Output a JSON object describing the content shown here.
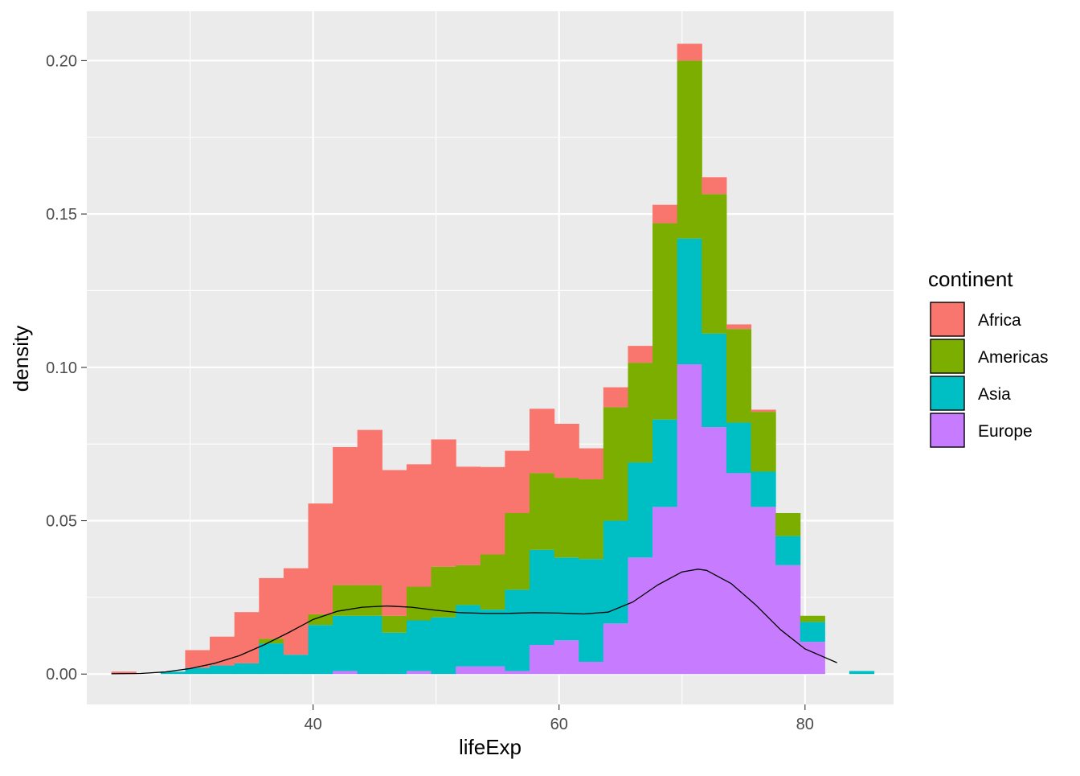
{
  "chart_data": {
    "type": "bar",
    "subtype": "stacked-histogram-with-density-line",
    "xlabel": "lifeExp",
    "ylabel": "density",
    "xlim": [
      21.6,
      87.2
    ],
    "ylim": [
      -0.0099,
      0.2161
    ],
    "x_ticks": [
      40,
      60,
      80
    ],
    "x_tick_labels": [
      "40",
      "60",
      "80"
    ],
    "y_ticks": [
      0.0,
      0.05,
      0.1,
      0.15,
      0.2
    ],
    "y_tick_labels": [
      "0.00",
      "0.05",
      "0.10",
      "0.15",
      "0.20"
    ],
    "grid": true,
    "legend_position": "right",
    "legend_title": "continent",
    "bin_width": 2.0,
    "bin_centers": [
      24.6,
      26.6,
      28.6,
      30.6,
      32.6,
      34.6,
      36.6,
      38.6,
      40.6,
      42.6,
      44.6,
      46.6,
      48.6,
      50.6,
      52.6,
      54.6,
      56.6,
      58.6,
      60.6,
      62.6,
      64.6,
      66.6,
      68.6,
      70.6,
      72.6,
      74.6,
      76.6,
      78.6,
      80.6,
      82.6,
      84.6
    ],
    "series": [
      {
        "name": "Europe",
        "color": "#C77CFF",
        "values": [
          0,
          0,
          0,
          0,
          0,
          0,
          0,
          0,
          0,
          0.001,
          0,
          0,
          0.001,
          0,
          0.0025,
          0.0025,
          0.001,
          0.0095,
          0.011,
          0.004,
          0.0165,
          0.038,
          0.0545,
          0.101,
          0.0805,
          0.0655,
          0.0545,
          0.0355,
          0.0105,
          0,
          0
        ]
      },
      {
        "name": "Asia",
        "color": "#00BFC4",
        "values": [
          0,
          0,
          0.0008,
          0.002,
          0.0028,
          0.0035,
          0.01,
          0.0063,
          0.016,
          0.018,
          0.019,
          0.0135,
          0.0165,
          0.0185,
          0.02,
          0.0185,
          0.0265,
          0.031,
          0.027,
          0.0335,
          0.0335,
          0.031,
          0.0285,
          0.041,
          0.0305,
          0.0165,
          0.0115,
          0.0095,
          0.0065,
          0,
          0.001
        ]
      },
      {
        "name": "Americas",
        "color": "#7CAE00",
        "values": [
          0,
          0,
          0,
          0,
          0,
          0,
          0.0015,
          0,
          0.0035,
          0.01,
          0.01,
          0.0055,
          0.011,
          0.0165,
          0.013,
          0.018,
          0.025,
          0.025,
          0.026,
          0.026,
          0.037,
          0.0325,
          0.064,
          0.058,
          0.0455,
          0.0305,
          0.0195,
          0.0075,
          0.002,
          0,
          0
        ]
      },
      {
        "name": "Africa",
        "color": "#F8766D",
        "values": [
          0.0008,
          0,
          0,
          0.0058,
          0.0094,
          0.0167,
          0.0198,
          0.0282,
          0.0361,
          0.045,
          0.0506,
          0.0475,
          0.0399,
          0.0415,
          0.0321,
          0.0285,
          0.0203,
          0.021,
          0.0176,
          0.0101,
          0.0065,
          0.0055,
          0.006,
          0.0055,
          0.0055,
          0.0015,
          0.0007,
          0,
          0,
          0,
          0
        ]
      }
    ],
    "density_line": {
      "color": "#000000",
      "x": [
        23.6,
        26,
        28,
        30,
        32,
        34,
        36,
        38,
        40,
        42,
        44,
        46,
        48,
        50,
        52,
        54,
        56,
        58,
        60,
        62,
        64,
        66,
        68,
        70,
        71.3,
        72,
        74,
        76,
        78,
        80,
        82.6
      ],
      "y": [
        0.0001,
        0.0002,
        0.0007,
        0.0018,
        0.0035,
        0.006,
        0.0095,
        0.0135,
        0.0178,
        0.0205,
        0.0218,
        0.0222,
        0.0218,
        0.0208,
        0.02,
        0.0198,
        0.0198,
        0.02,
        0.0199,
        0.0196,
        0.0202,
        0.0235,
        0.029,
        0.0333,
        0.0342,
        0.0338,
        0.0295,
        0.0225,
        0.0145,
        0.0082,
        0.0037
      ]
    }
  }
}
